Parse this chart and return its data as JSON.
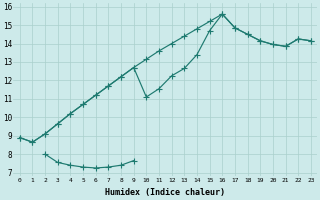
{
  "xlabel": "Humidex (Indice chaleur)",
  "xlim": [
    -0.5,
    23.5
  ],
  "ylim": [
    6.8,
    16.2
  ],
  "xticks": [
    0,
    1,
    2,
    3,
    4,
    5,
    6,
    7,
    8,
    9,
    10,
    11,
    12,
    13,
    14,
    15,
    16,
    17,
    18,
    19,
    20,
    21,
    22,
    23
  ],
  "yticks": [
    7,
    8,
    9,
    10,
    11,
    12,
    13,
    14,
    15,
    16
  ],
  "bg_color": "#cdeaea",
  "grid_color": "#aad0cc",
  "line_color": "#1e7a70",
  "line1_x": [
    0,
    1,
    2,
    3,
    4,
    5,
    6,
    7,
    8,
    9,
    10,
    11,
    12,
    13,
    14,
    15,
    16,
    17,
    18,
    19,
    20,
    21,
    22,
    23
  ],
  "line1_y": [
    8.9,
    8.65,
    9.1,
    9.65,
    10.2,
    10.7,
    11.2,
    11.7,
    12.2,
    12.7,
    13.15,
    13.6,
    14.0,
    14.4,
    14.8,
    15.2,
    15.6,
    14.85,
    14.5,
    14.15,
    13.95,
    13.85,
    14.25,
    14.15
  ],
  "line2_x": [
    0,
    1,
    2,
    3,
    4,
    5,
    6,
    7,
    8,
    9,
    10,
    11,
    12,
    13,
    14,
    15,
    16,
    17,
    18,
    19,
    20,
    21,
    22,
    23
  ],
  "line2_y": [
    8.9,
    8.65,
    9.1,
    9.65,
    10.2,
    10.7,
    11.2,
    11.7,
    12.2,
    12.7,
    11.1,
    11.55,
    12.25,
    12.65,
    13.4,
    14.7,
    15.6,
    14.85,
    14.5,
    14.15,
    13.95,
    13.85,
    14.25,
    14.15
  ],
  "line3_x": [
    2,
    3,
    4,
    5,
    6,
    7,
    8,
    9
  ],
  "line3_y": [
    8.0,
    7.55,
    7.4,
    7.3,
    7.25,
    7.3,
    7.4,
    7.65
  ]
}
